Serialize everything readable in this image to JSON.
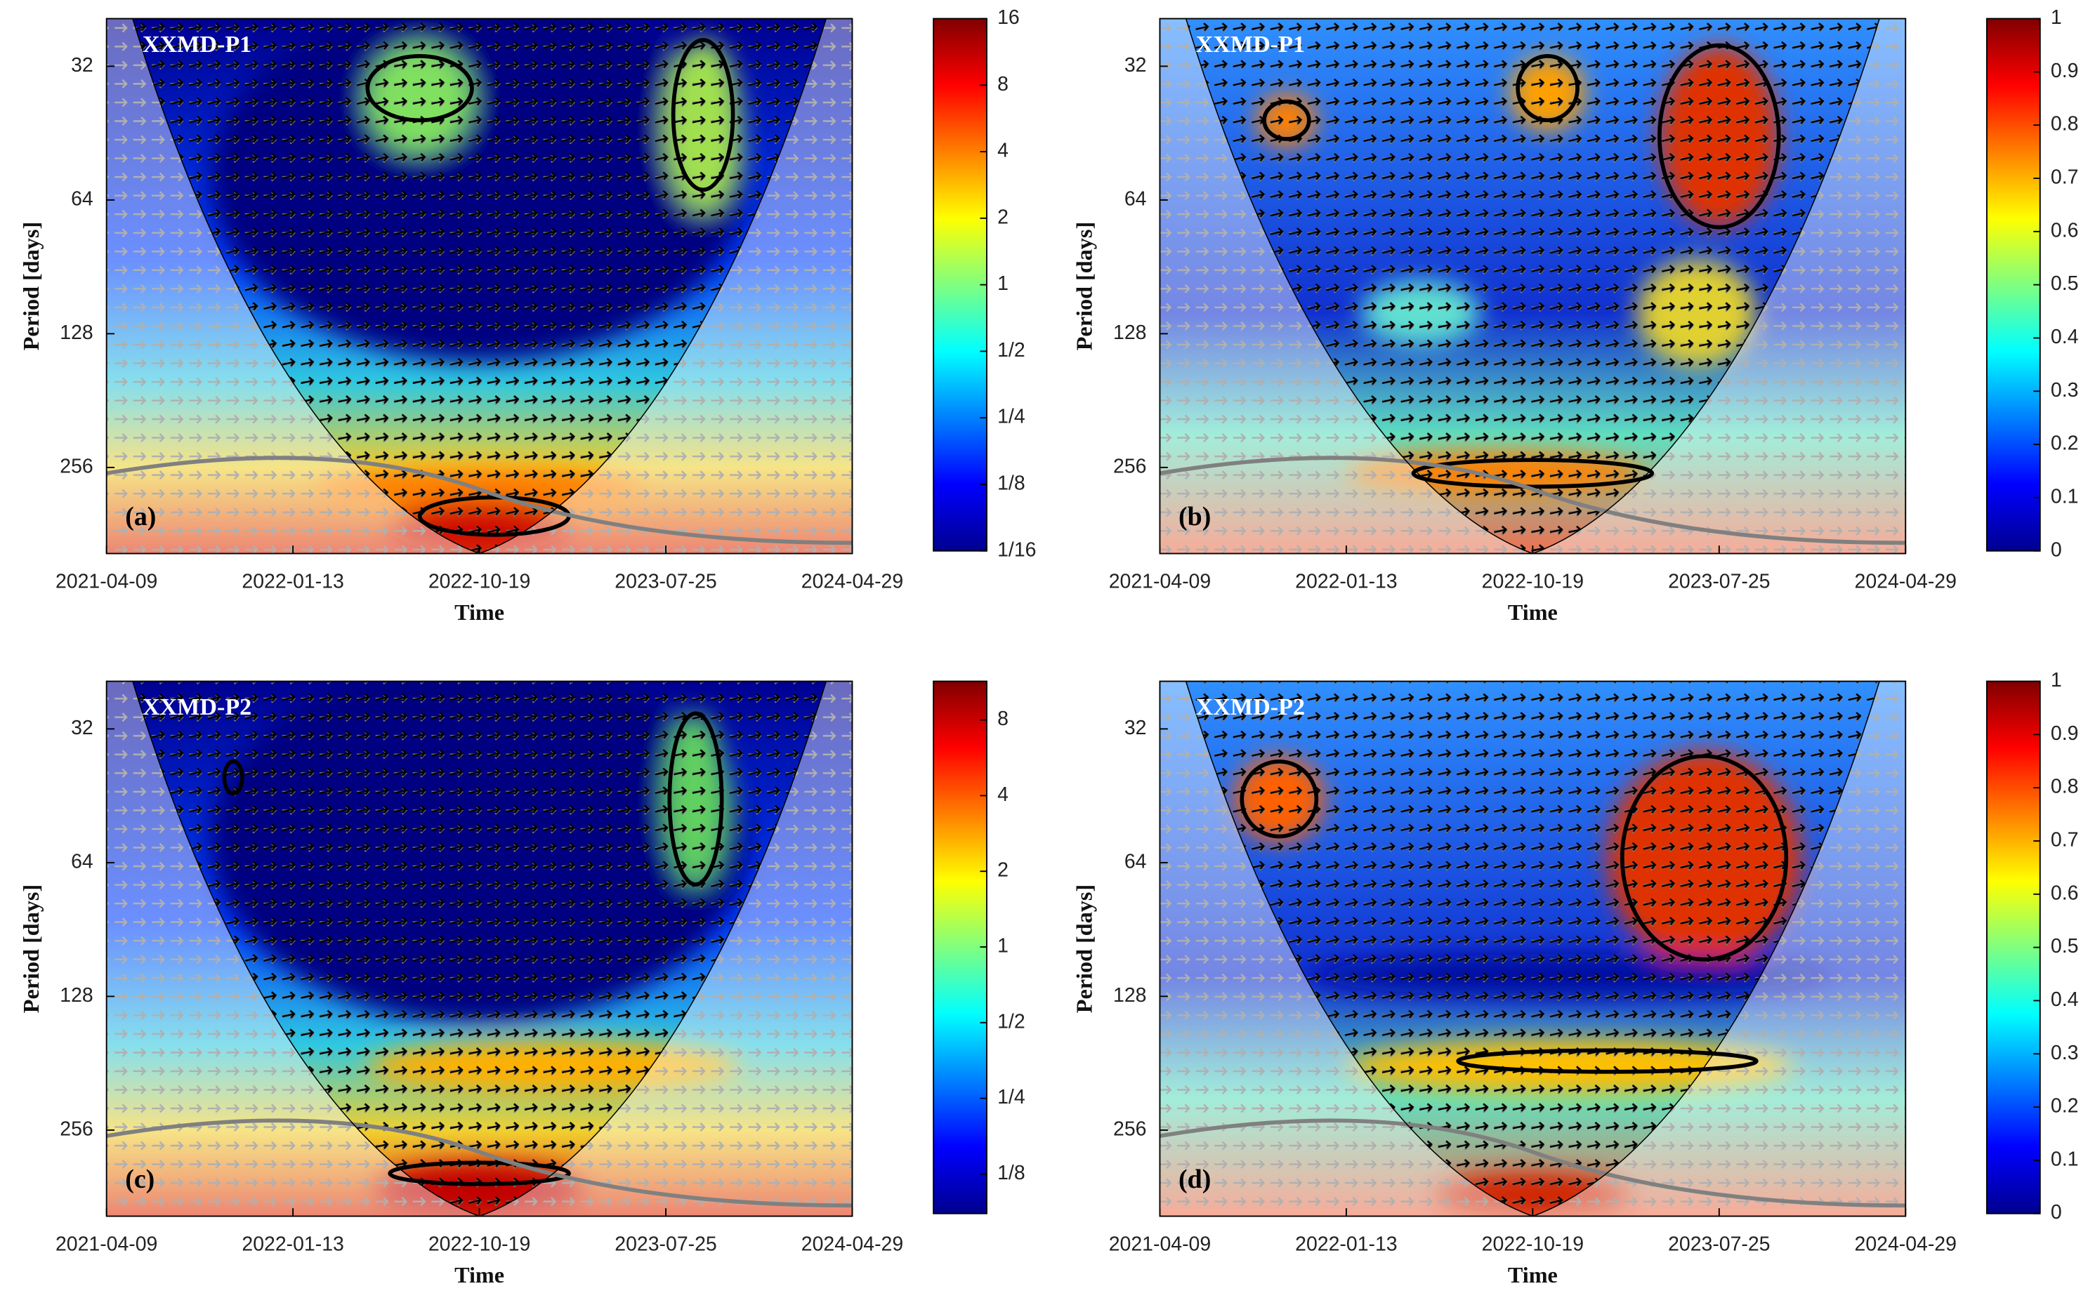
{
  "chart_data": [
    {
      "type": "heatmap",
      "panel": "(a)",
      "title": "XXMD-P1",
      "xlabel": "Time",
      "ylabel": "Period [days]",
      "xticks": [
        "2021-04-09",
        "2022-01-13",
        "2022-10-19",
        "2023-07-25",
        "2024-04-29"
      ],
      "ylim": [
        25,
        400
      ],
      "yticks": [
        32,
        64,
        128,
        256
      ],
      "yscale": "log",
      "colorbar": {
        "lim": [
          0.0625,
          16
        ],
        "scale": "log",
        "ticks": [
          {
            "value": 0.0625,
            "label": "1/16"
          },
          {
            "value": 0.125,
            "label": "1/8"
          },
          {
            "value": 0.25,
            "label": "1/4"
          },
          {
            "value": 0.5,
            "label": "1/2"
          },
          1,
          2,
          4,
          8,
          16
        ]
      }
    },
    {
      "type": "heatmap",
      "panel": "(b)",
      "title": "XXMD-P1",
      "xlabel": "Time",
      "ylabel": "Period [days]",
      "xticks": [
        "2021-04-09",
        "2022-01-13",
        "2022-10-19",
        "2023-07-25",
        "2024-04-29"
      ],
      "ylim": [
        25,
        400
      ],
      "yticks": [
        32,
        64,
        128,
        256
      ],
      "yscale": "log",
      "colorbar": {
        "lim": [
          0,
          1
        ],
        "scale": "linear",
        "ticks": [
          0,
          0.1,
          0.2,
          0.3,
          0.4,
          0.5,
          0.6,
          0.7,
          0.8,
          0.9,
          1
        ]
      }
    },
    {
      "type": "heatmap",
      "panel": "(c)",
      "title": "XXMD-P2",
      "xlabel": "Time",
      "ylabel": "Period [days]",
      "xticks": [
        "2021-04-09",
        "2022-01-13",
        "2022-10-19",
        "2023-07-25",
        "2024-04-29"
      ],
      "ylim": [
        25,
        400
      ],
      "yticks": [
        32,
        64,
        128,
        256
      ],
      "yscale": "log",
      "colorbar": {
        "lim": [
          0.087,
          11.4
        ],
        "scale": "log",
        "ticks": [
          {
            "value": 0.125,
            "label": "1/8"
          },
          {
            "value": 0.25,
            "label": "1/4"
          },
          {
            "value": 0.5,
            "label": "1/2"
          },
          1,
          2,
          4,
          8
        ]
      }
    },
    {
      "type": "heatmap",
      "panel": "(d)",
      "title": "XXMD-P2",
      "xlabel": "Time",
      "ylabel": "Period [days]",
      "xticks": [
        "2021-04-09",
        "2022-01-13",
        "2022-10-19",
        "2023-07-25",
        "2024-04-29"
      ],
      "ylim": [
        25,
        400
      ],
      "yticks": [
        32,
        64,
        128,
        256
      ],
      "yscale": "log",
      "colorbar": {
        "lim": [
          0,
          1
        ],
        "scale": "linear",
        "ticks": [
          0,
          0.1,
          0.2,
          0.3,
          0.4,
          0.5,
          0.6,
          0.7,
          0.8,
          0.9,
          1
        ]
      }
    }
  ]
}
